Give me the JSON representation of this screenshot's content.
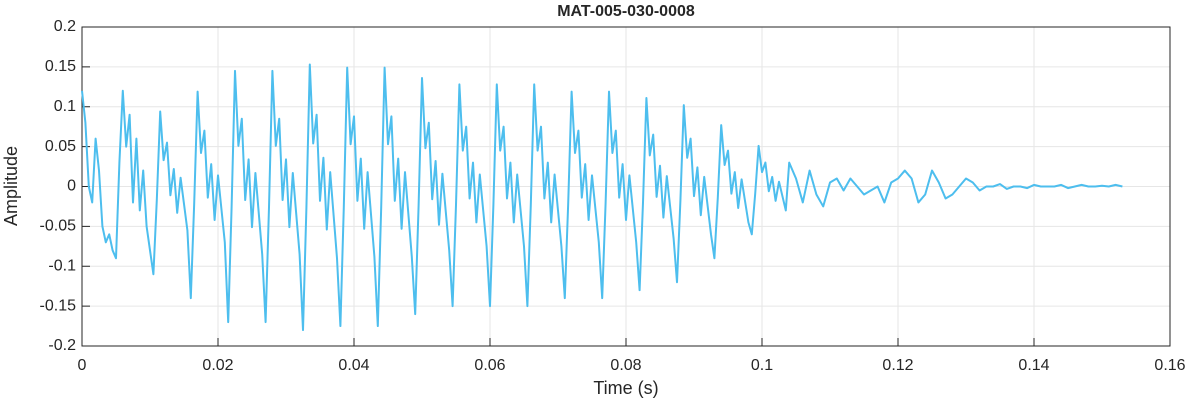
{
  "chart_data": {
    "type": "line",
    "title": "MAT-005-030-0008",
    "xlabel": "Time (s)",
    "ylabel": "Amplitude",
    "color": "#4DBEEE",
    "grid": true,
    "xlim": [
      0,
      0.16
    ],
    "xticks": [
      0,
      0.02,
      0.04,
      0.06,
      0.08,
      0.1,
      0.12,
      0.14,
      0.16
    ],
    "ylim": [
      -0.2,
      0.2
    ],
    "yticks": [
      -0.2,
      -0.15,
      -0.1,
      -0.05,
      0,
      0.05,
      0.1,
      0.15,
      0.2
    ],
    "x": [
      0,
      0.0005,
      0.001,
      0.0015,
      0.002,
      0.0025,
      0.003,
      0.0035,
      0.004,
      0.0045,
      0.005,
      0.0055,
      0.006,
      0.0065,
      0.007,
      0.0075,
      0.008,
      0.0085,
      0.009,
      0.0095,
      0.01,
      0.0105,
      0.011,
      0.0115,
      0.012,
      0.0125,
      0.013,
      0.0135,
      0.014,
      0.0145,
      0.015,
      0.0155,
      0.016,
      0.0165,
      0.017,
      0.0175,
      0.018,
      0.0185,
      0.019,
      0.0195,
      0.02,
      0.0205,
      0.021,
      0.0215,
      0.022,
      0.0225,
      0.023,
      0.0235,
      0.024,
      0.0245,
      0.025,
      0.0255,
      0.026,
      0.0265,
      0.027,
      0.0275,
      0.028,
      0.0285,
      0.029,
      0.0295,
      0.03,
      0.0305,
      0.031,
      0.0315,
      0.032,
      0.0325,
      0.033,
      0.0335,
      0.034,
      0.0345,
      0.035,
      0.0355,
      0.036,
      0.0365,
      0.037,
      0.0375,
      0.038,
      0.0385,
      0.039,
      0.0395,
      0.04,
      0.0405,
      0.041,
      0.0415,
      0.042,
      0.0425,
      0.043,
      0.0435,
      0.044,
      0.0445,
      0.045,
      0.0455,
      0.046,
      0.0465,
      0.047,
      0.0475,
      0.048,
      0.0485,
      0.049,
      0.0495,
      0.05,
      0.0505,
      0.051,
      0.0515,
      0.052,
      0.0525,
      0.053,
      0.0535,
      0.054,
      0.0545,
      0.055,
      0.0555,
      0.056,
      0.0565,
      0.057,
      0.0575,
      0.058,
      0.0585,
      0.059,
      0.0595,
      0.06,
      0.0605,
      0.061,
      0.0615,
      0.062,
      0.0625,
      0.063,
      0.0635,
      0.064,
      0.0645,
      0.065,
      0.0655,
      0.066,
      0.0665,
      0.067,
      0.0675,
      0.068,
      0.0685,
      0.069,
      0.0695,
      0.07,
      0.0705,
      0.071,
      0.0715,
      0.072,
      0.0725,
      0.073,
      0.0735,
      0.074,
      0.0745,
      0.075,
      0.0755,
      0.076,
      0.0765,
      0.077,
      0.0775,
      0.078,
      0.0785,
      0.079,
      0.0795,
      0.08,
      0.0805,
      0.081,
      0.0815,
      0.082,
      0.0825,
      0.083,
      0.0835,
      0.084,
      0.0845,
      0.085,
      0.0855,
      0.086,
      0.0865,
      0.087,
      0.0875,
      0.088,
      0.0885,
      0.089,
      0.0895,
      0.09,
      0.0905,
      0.091,
      0.0915,
      0.092,
      0.0925,
      0.093,
      0.0935,
      0.094,
      0.0945,
      0.095,
      0.0955,
      0.096,
      0.0965,
      0.097,
      0.0975,
      0.098,
      0.0985,
      0.099,
      0.0995,
      0.1,
      0.1005,
      0.101,
      0.1015,
      0.102,
      0.1025,
      0.103,
      0.1035,
      0.104,
      0.105,
      0.106,
      0.107,
      0.108,
      0.109,
      0.11,
      0.111,
      0.112,
      0.113,
      0.114,
      0.115,
      0.116,
      0.117,
      0.118,
      0.119,
      0.12,
      0.121,
      0.122,
      0.123,
      0.124,
      0.125,
      0.126,
      0.127,
      0.128,
      0.129,
      0.13,
      0.131,
      0.132,
      0.133,
      0.134,
      0.135,
      0.136,
      0.137,
      0.138,
      0.139,
      0.14,
      0.141,
      0.142,
      0.143,
      0.144,
      0.145,
      0.146,
      0.147,
      0.148,
      0.149,
      0.15,
      0.151,
      0.152,
      0.153
    ],
    "values": [
      0.12,
      0.08,
      0,
      -0.02,
      0.06,
      0.02,
      -0.05,
      -0.07,
      -0.06,
      -0.08,
      -0.09,
      0.03,
      0.12,
      0.05,
      0.09,
      -0.02,
      0.06,
      -0.03,
      0.02,
      -0.05,
      -0.08,
      -0.11,
      -0.017,
      0.094,
      0.033,
      0.055,
      -0.011,
      0.022,
      -0.033,
      0.011,
      -0.022,
      -0.055,
      -0.14,
      -0.021,
      0.119,
      0.042,
      0.07,
      -0.014,
      0.028,
      -0.042,
      0.014,
      -0.028,
      -0.07,
      -0.17,
      -0.026,
      0.145,
      0.051,
      0.085,
      -0.017,
      0.034,
      -0.051,
      0.017,
      -0.034,
      -0.085,
      -0.17,
      -0.026,
      0.145,
      0.051,
      0.085,
      -0.017,
      0.034,
      -0.051,
      0.017,
      -0.034,
      -0.085,
      -0.18,
      -0.027,
      0.153,
      0.054,
      0.09,
      -0.018,
      0.036,
      -0.054,
      0.018,
      -0.036,
      -0.09,
      -0.175,
      -0.026,
      0.149,
      0.053,
      0.088,
      -0.018,
      0.035,
      -0.053,
      0.018,
      -0.035,
      -0.088,
      -0.175,
      -0.026,
      0.149,
      0.053,
      0.088,
      -0.018,
      0.035,
      -0.053,
      0.018,
      -0.035,
      -0.088,
      -0.16,
      -0.024,
      0.136,
      0.048,
      0.08,
      -0.016,
      0.032,
      -0.048,
      0.016,
      -0.032,
      -0.08,
      -0.15,
      -0.023,
      0.128,
      0.045,
      0.075,
      -0.015,
      0.03,
      -0.045,
      0.015,
      -0.03,
      -0.075,
      -0.15,
      -0.023,
      0.128,
      0.045,
      0.075,
      -0.015,
      0.03,
      -0.045,
      0.015,
      -0.03,
      -0.075,
      -0.15,
      -0.023,
      0.128,
      0.045,
      0.075,
      -0.015,
      0.03,
      -0.045,
      0.015,
      -0.03,
      -0.075,
      -0.14,
      -0.021,
      0.119,
      0.042,
      0.07,
      -0.014,
      0.028,
      -0.042,
      0.014,
      -0.028,
      -0.07,
      -0.14,
      -0.021,
      0.119,
      0.042,
      0.07,
      -0.014,
      0.028,
      -0.042,
      0.014,
      -0.028,
      -0.07,
      -0.13,
      -0.02,
      0.111,
      0.039,
      0.065,
      -0.013,
      0.026,
      -0.039,
      0.013,
      -0.026,
      -0.065,
      -0.12,
      -0.018,
      0.102,
      0.036,
      0.06,
      -0.012,
      0.024,
      -0.036,
      0.012,
      -0.024,
      -0.06,
      -0.09,
      -0.014,
      0.077,
      0.027,
      0.045,
      -0.009,
      0.018,
      -0.027,
      0.009,
      -0.018,
      -0.045,
      -0.06,
      -0.009,
      0.051,
      0.018,
      0.03,
      -0.006,
      0.012,
      -0.018,
      0.006,
      -0.012,
      -0.03,
      0.03,
      0.01,
      -0.02,
      0.02,
      -0.01,
      -0.025,
      0.005,
      0.01,
      -0.005,
      0.01,
      0,
      -0.01,
      -0.005,
      0,
      -0.02,
      0.005,
      0.01,
      0.02,
      0.01,
      -0.02,
      -0.01,
      0.02,
      0.005,
      -0.015,
      -0.01,
      0,
      0.01,
      0.005,
      -0.005,
      0,
      0,
      0.003,
      -0.003,
      0,
      0,
      -0.002,
      0.002,
      0,
      0,
      0,
      0.002,
      -0.002,
      0,
      0.002,
      0,
      0,
      0.001,
      0,
      0.002,
      0
    ]
  }
}
